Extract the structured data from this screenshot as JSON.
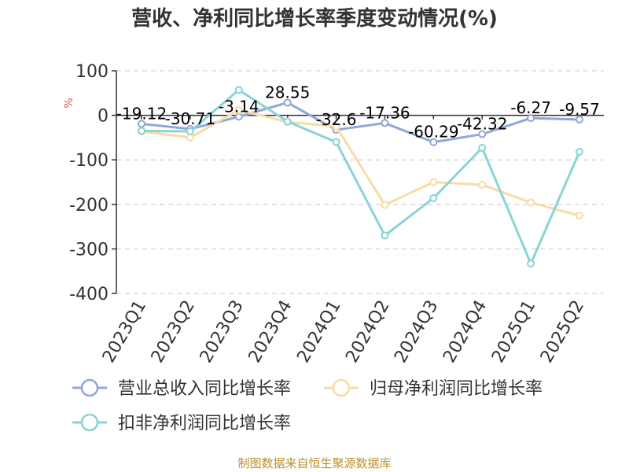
{
  "chart_data": {
    "type": "line",
    "title": "营收、净利同比增长率季度变动情况(%)",
    "ylabel": "%",
    "xlabel": "",
    "categories": [
      "2023Q1",
      "2023Q2",
      "2023Q3",
      "2023Q4",
      "2024Q1",
      "2024Q2",
      "2024Q3",
      "2024Q4",
      "2025Q1",
      "2025Q2"
    ],
    "ylim": [
      -400,
      100
    ],
    "yticks": [
      100,
      0,
      -100,
      -200,
      -300,
      -400
    ],
    "grid": true,
    "legend_position": "bottom",
    "series": [
      {
        "name": "营业总收入同比增长率",
        "color": "#8fa8d8",
        "values": [
          -19.12,
          -30.71,
          -3.14,
          28.55,
          -32.6,
          -17.36,
          -60.29,
          -42.32,
          -6.27,
          -9.57
        ],
        "labels": [
          "-19.12",
          "-30.71",
          "-3.14",
          "28.55",
          "-32.6",
          "-17.36",
          "-60.29",
          "-42.32",
          "-6.27",
          "-9.57"
        ]
      },
      {
        "name": "归母净利润同比增长率",
        "color": "#f8dca4",
        "values": [
          -36,
          -50,
          12,
          -15,
          -25,
          -201,
          -150,
          -156,
          -196,
          -225
        ]
      },
      {
        "name": "扣非净利润同比增长率",
        "color": "#88d4d6",
        "values": [
          -35,
          -36,
          57,
          -14,
          -60,
          -270,
          -186,
          -73,
          -333,
          -82
        ]
      }
    ]
  },
  "source_text": "制图数据来自恒生聚源数据库"
}
